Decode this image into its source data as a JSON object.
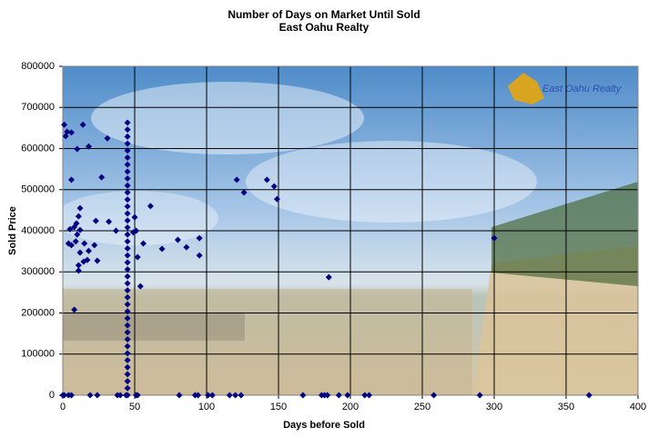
{
  "chart_data": {
    "type": "scatter",
    "title": "Number of Days on Market Until Sold",
    "subtitle": "East Oahu Realty",
    "x_label": "Days before Sold",
    "y_label": "Sold Price",
    "logo_text": "East Oahu Realty",
    "color": "#000080",
    "grid": true,
    "xlim": [
      0,
      400
    ],
    "xticks": [
      0,
      50,
      100,
      150,
      200,
      250,
      300,
      350,
      400
    ],
    "ylim": [
      0,
      800000
    ],
    "yticks": [
      0,
      100000,
      200000,
      300000,
      400000,
      500000,
      600000,
      700000,
      800000
    ],
    "x": [
      1,
      2,
      3,
      6,
      10,
      14,
      18,
      31,
      6,
      27,
      12,
      11,
      32,
      9.5,
      8,
      37,
      5,
      12,
      10,
      4,
      6,
      9,
      15,
      12,
      22,
      18,
      14.5,
      17,
      24,
      11,
      8,
      23,
      11,
      45,
      45,
      45,
      45,
      45,
      45,
      45,
      45,
      45,
      45,
      45,
      45,
      45,
      45,
      45,
      45,
      45,
      45,
      45,
      45,
      45,
      45,
      45,
      45,
      45,
      45,
      45,
      45,
      45,
      45,
      45,
      45,
      45,
      45,
      45,
      45,
      45,
      45,
      45,
      45,
      50,
      51,
      49,
      52,
      54,
      56,
      61,
      69,
      80,
      86,
      95,
      95,
      121,
      126,
      142,
      147,
      149,
      185,
      300,
      0,
      1,
      4,
      6,
      19,
      24,
      38,
      40,
      44,
      51,
      52,
      81,
      92,
      94,
      101,
      104,
      116,
      120,
      124,
      167,
      180,
      182,
      184,
      192,
      198,
      210,
      213,
      258,
      290,
      366
    ],
    "values": [
      658000,
      630000,
      641000,
      639000,
      599000,
      658000,
      605000,
      625000,
      524000,
      530000,
      455000,
      435000,
      422000,
      418000,
      409000,
      400000,
      404000,
      402000,
      391000,
      369000,
      365000,
      374000,
      369000,
      347000,
      365000,
      351000,
      325000,
      329000,
      327000,
      303000,
      208000,
      424000,
      316000,
      0,
      17000,
      34000,
      51000,
      68000,
      85000,
      102000,
      119000,
      136000,
      153000,
      170000,
      187000,
      204000,
      221000,
      238000,
      255000,
      272000,
      289000,
      306000,
      323000,
      340000,
      357000,
      374000,
      391000,
      408000,
      425000,
      442000,
      459000,
      476000,
      493000,
      510000,
      527000,
      544000,
      561000,
      578000,
      595000,
      612000,
      629000,
      646000,
      663000,
      433000,
      400000,
      396000,
      336000,
      265000,
      369000,
      460000,
      356000,
      378000,
      360000,
      382000,
      340000,
      524000,
      493000,
      524000,
      508000,
      477000,
      287000,
      382000,
      0,
      0,
      0,
      0,
      0,
      0,
      0,
      0,
      0,
      0,
      0,
      0,
      0,
      0,
      0,
      0,
      0,
      0,
      0,
      0,
      0,
      0,
      0,
      0,
      0,
      0,
      0,
      0,
      0,
      0
    ]
  }
}
